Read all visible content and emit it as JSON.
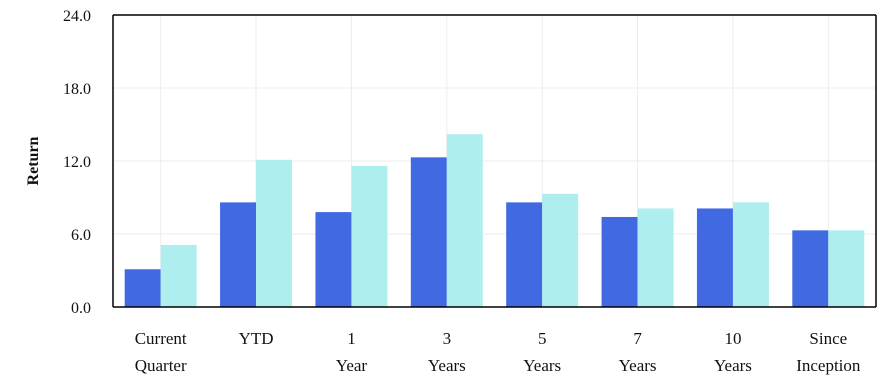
{
  "chart_data": {
    "type": "bar",
    "title": "",
    "xlabel": "",
    "ylabel": "Return",
    "ylim": [
      0,
      24
    ],
    "yticks": [
      "0.0",
      "6.0",
      "12.0",
      "18.0",
      "24.0"
    ],
    "ytick_values": [
      0,
      6,
      12,
      18,
      24
    ],
    "grid": true,
    "legend": "none",
    "categories": [
      [
        "Current",
        "Quarter"
      ],
      [
        "YTD"
      ],
      [
        "1",
        "Year"
      ],
      [
        "3",
        "Years"
      ],
      [
        "5",
        "Years"
      ],
      [
        "7",
        "Years"
      ],
      [
        "10",
        "Years"
      ],
      [
        "Since",
        "Inception"
      ]
    ],
    "series": [
      {
        "color": "#4169E1",
        "values": [
          3.1,
          8.6,
          7.8,
          12.3,
          8.6,
          7.4,
          8.1,
          6.3
        ]
      },
      {
        "color": "#AFEEEE",
        "values": [
          5.1,
          12.1,
          11.6,
          14.2,
          9.3,
          8.1,
          8.6,
          6.3
        ]
      }
    ]
  }
}
